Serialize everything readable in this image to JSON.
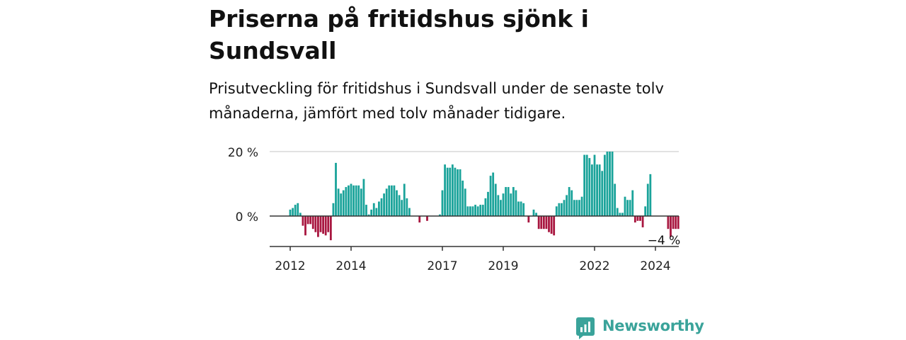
{
  "header": {
    "title": "Priserna på fritidshus sjönk i Sundsvall",
    "subtitle": "Prisutveckling för fritidshus i Sundsvall under de senaste tolv månaderna, jämfört med tolv månader tidigare."
  },
  "brand": {
    "name": "Newsworthy"
  },
  "colors": {
    "positive": "#1aa39a",
    "negative": "#a8163f",
    "grid": "#d9d9d9",
    "axis": "#333333"
  },
  "chart_data": {
    "type": "bar",
    "y_unit": "%",
    "ylim": [
      -9,
      20
    ],
    "yticks": [
      {
        "value": 0,
        "label": "0 %"
      },
      {
        "value": 20,
        "label": "20 %"
      }
    ],
    "x_tick_labels": [
      "2012",
      "2014",
      "2017",
      "2019",
      "2022",
      "2024"
    ],
    "x_ticks": [
      2012.0,
      2014.0,
      2017.0,
      2019.0,
      2022.0,
      2024.0
    ],
    "last_value_label": "−4 %",
    "x_start": 2012.0,
    "months_per_bar": 1,
    "values": [
      2,
      2.5,
      3.5,
      4,
      1,
      -3,
      -6,
      -2.5,
      -2.5,
      -4,
      -5,
      -6.5,
      -5,
      -5.5,
      -6,
      -5,
      -7.5,
      4,
      16.5,
      8.5,
      7,
      8,
      9,
      9.5,
      10,
      9.5,
      9.5,
      9.5,
      8.5,
      11.5,
      3.5,
      0.5,
      2,
      4,
      2.5,
      4.5,
      5.5,
      7,
      8.5,
      9.5,
      9.5,
      9.5,
      8,
      6.5,
      5,
      10,
      5.5,
      2.5,
      0,
      0,
      0,
      -2,
      0,
      0,
      -1.5,
      0,
      0,
      0,
      0,
      0.5,
      8,
      16,
      15,
      15,
      16,
      15,
      14.5,
      14.5,
      11,
      8.5,
      3,
      3,
      3,
      3.5,
      3,
      3.5,
      3.5,
      5.5,
      7.5,
      12.5,
      13.5,
      10,
      6.5,
      5,
      7,
      9,
      9,
      7,
      9,
      8,
      4.5,
      4.5,
      4,
      0,
      -2,
      0,
      2,
      1,
      -4,
      -4,
      -4,
      -4,
      -5,
      -5.5,
      -6,
      3,
      4,
      4,
      5,
      6.5,
      9,
      8,
      5,
      5,
      5,
      6,
      19,
      19,
      18,
      16,
      19,
      16,
      16,
      14,
      19,
      20,
      20,
      20,
      10,
      2.5,
      1,
      1,
      6,
      5,
      5,
      8,
      -2,
      -1.5,
      -1.5,
      -3.5,
      3,
      10,
      13,
      0,
      0,
      0,
      0,
      0,
      0,
      -4,
      -6.5,
      -4,
      -4,
      -4
    ]
  }
}
